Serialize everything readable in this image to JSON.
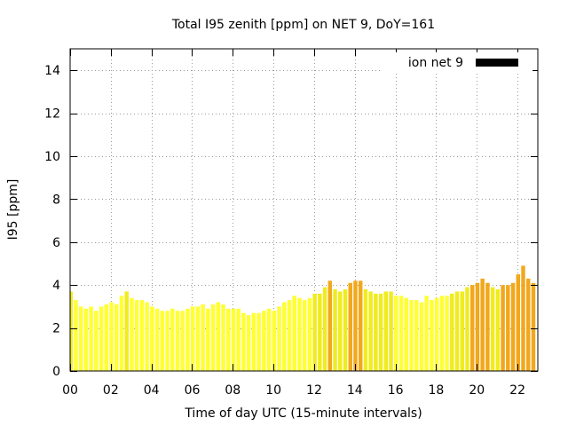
{
  "chart_data": {
    "type": "bar",
    "title": "Total I95 zenith [ppm] on NET 9, DoY=161",
    "xlabel": "Time of day UTC (15-minute intervals)",
    "ylabel": "I95 [ppm]",
    "xlim": [
      0,
      23
    ],
    "ylim": [
      0,
      15
    ],
    "x_ticks": [
      "00",
      "02",
      "04",
      "06",
      "08",
      "10",
      "12",
      "14",
      "16",
      "18",
      "20",
      "22"
    ],
    "x_tick_values": [
      0,
      2,
      4,
      6,
      8,
      10,
      12,
      14,
      16,
      18,
      20,
      22
    ],
    "y_ticks": [
      "0",
      "2",
      "4",
      "6",
      "8",
      "10",
      "12",
      "14"
    ],
    "y_tick_values": [
      0,
      2,
      4,
      6,
      8,
      10,
      12,
      14
    ],
    "grid": true,
    "legend": {
      "label": "ion net 9",
      "placement": "top-right",
      "color": "#000000"
    },
    "colors": {
      "low": "#ffff33",
      "mid": "#f0ec1e",
      "high": "#f2a81c",
      "frame": "#000000",
      "grid": "#9a9a9a"
    },
    "threshold_high": 4.0,
    "interval_hours": 0.25,
    "values": [
      3.7,
      3.3,
      3.0,
      2.9,
      3.0,
      2.8,
      3.0,
      3.1,
      3.2,
      3.1,
      3.5,
      3.7,
      3.4,
      3.3,
      3.3,
      3.2,
      3.0,
      2.9,
      2.8,
      2.8,
      2.9,
      2.8,
      2.8,
      2.9,
      3.0,
      3.0,
      3.1,
      2.9,
      3.1,
      3.2,
      3.1,
      2.9,
      2.9,
      2.9,
      2.7,
      2.6,
      2.7,
      2.7,
      2.8,
      2.9,
      2.8,
      3.0,
      3.2,
      3.3,
      3.5,
      3.4,
      3.3,
      3.4,
      3.6,
      3.6,
      3.9,
      4.2,
      3.8,
      3.7,
      3.8,
      4.1,
      4.2,
      4.2,
      3.8,
      3.7,
      3.6,
      3.6,
      3.7,
      3.7,
      3.5,
      3.5,
      3.4,
      3.3,
      3.3,
      3.2,
      3.5,
      3.3,
      3.4,
      3.5,
      3.5,
      3.6,
      3.7,
      3.7,
      3.9,
      4.0,
      4.1,
      4.3,
      4.1,
      3.9,
      3.8,
      4.0,
      4.0,
      4.1,
      4.5,
      4.9,
      4.3,
      4.1
    ]
  }
}
